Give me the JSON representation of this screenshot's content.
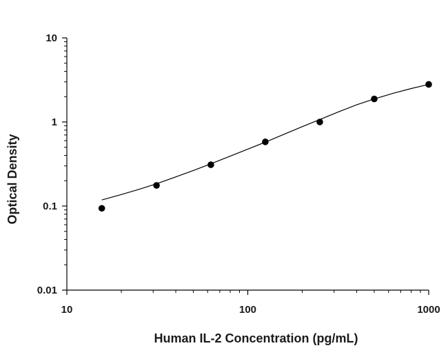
{
  "chart_data": {
    "type": "scatter",
    "title": "",
    "xlabel": "Human IL-2 Concentration (pg/mL)",
    "ylabel": "Optical Density",
    "x_scale": "log",
    "y_scale": "log",
    "xlim": [
      10,
      1000
    ],
    "ylim": [
      0.01,
      10
    ],
    "x_ticks": [
      "10",
      "100",
      "1000"
    ],
    "y_ticks": [
      "0.01",
      "0.1",
      "1",
      "10"
    ],
    "grid": false,
    "legend": "none",
    "series": [
      {
        "marker": "circle",
        "color": "#000000",
        "x": [
          15.6,
          31.3,
          62.5,
          125,
          250,
          500,
          1000
        ],
        "y": [
          0.094,
          0.176,
          0.31,
          0.58,
          1.0,
          1.88,
          2.8
        ]
      }
    ],
    "fit_curve": {
      "color": "#000000",
      "x": [
        15.6,
        20,
        25,
        31.3,
        40,
        50,
        62.5,
        80,
        100,
        125,
        160,
        200,
        250,
        320,
        400,
        500,
        640,
        800,
        1000
      ],
      "y": [
        0.118,
        0.137,
        0.158,
        0.184,
        0.222,
        0.265,
        0.318,
        0.392,
        0.475,
        0.575,
        0.72,
        0.88,
        1.07,
        1.33,
        1.6,
        1.88,
        2.2,
        2.5,
        2.8
      ]
    }
  }
}
